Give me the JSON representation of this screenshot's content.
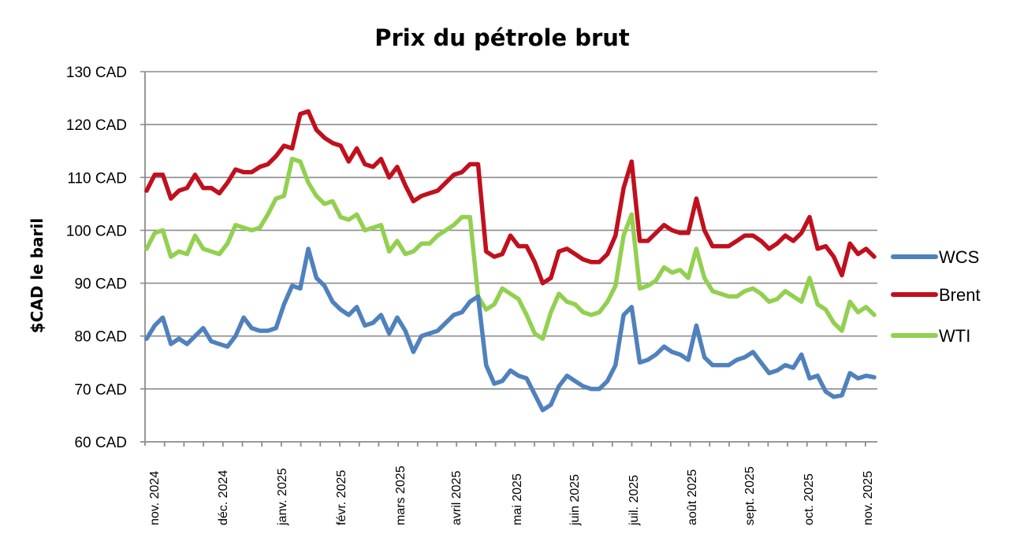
{
  "chart_data": {
    "type": "line",
    "title": "Prix du pétrole brut",
    "xlabel": "",
    "ylabel": "$CAD le baril",
    "ylim": [
      60,
      130
    ],
    "yticks": [
      "60 CAD",
      "70 CAD",
      "80 CAD",
      "90 CAD",
      "100 CAD",
      "110 CAD",
      "120 CAD",
      "130 CAD"
    ],
    "ytick_values": [
      60,
      70,
      80,
      90,
      100,
      110,
      120,
      130
    ],
    "xtick_labels": [
      "nov. 2024",
      "déc. 2024",
      "janv. 2025",
      "févr. 2025",
      "mars 2025",
      "avril 2025",
      "mai 2025",
      "juin 2025",
      "juil. 2025",
      "août 2025",
      "sept. 2025",
      "oct. 2025",
      "nov. 2025"
    ],
    "grid": true,
    "legend_position": "right",
    "x_index_count": 76,
    "series": [
      {
        "name": "WCS",
        "color": "#4f81bd",
        "values": [
          79.5,
          82,
          83.5,
          78.5,
          79.5,
          78.5,
          80,
          81.5,
          79,
          78.5,
          78,
          80,
          83.5,
          81.5,
          81,
          81,
          81.5,
          86,
          89.5,
          89,
          96.5,
          91,
          89.5,
          86.5,
          85,
          84,
          85.5,
          82,
          82.5,
          84,
          80.5,
          83.5,
          81,
          77,
          80,
          80.5,
          81,
          82.5,
          84,
          84.5,
          86.5,
          87.5,
          74.5,
          71,
          71.5,
          73.5,
          72.5,
          72,
          69,
          66,
          67,
          70.5,
          72.5,
          71.5,
          70.5,
          70,
          70,
          71.5,
          74.5,
          84,
          85.5,
          75,
          75.5,
          76.5,
          78,
          77,
          76.5,
          75.5,
          82,
          76,
          74.5,
          74.5,
          74.5,
          75.5,
          76,
          77
        ],
        "values_tail": [
          75,
          73,
          73.5,
          74.5,
          74,
          76.5,
          72,
          72.5,
          69.5,
          68.5,
          68.8,
          73,
          72,
          72.5,
          72.2
        ]
      },
      {
        "name": "Brent",
        "color": "#c0101e",
        "values": [
          107.5,
          110.5,
          110.5,
          106,
          107.5,
          108,
          110.5,
          108,
          108,
          107,
          109,
          111.5,
          111,
          111,
          112,
          112.5,
          114,
          116,
          115.5,
          122,
          122.5,
          119,
          117.5,
          116.5,
          116,
          113,
          115.5,
          112.5,
          112,
          113.5,
          110,
          112,
          108.5,
          105.5,
          106.5,
          107,
          107.5,
          109,
          110.5,
          111,
          112.5,
          112.5,
          96,
          95,
          95.5,
          99,
          97,
          97,
          94,
          90,
          91,
          96,
          96.5,
          95.5,
          94.5,
          94,
          94,
          95.5,
          99,
          108,
          113,
          98,
          98,
          99.5,
          101,
          100,
          99.5,
          99.5,
          106,
          100,
          97,
          97,
          97,
          98,
          99,
          99
        ],
        "values_tail": [
          98,
          96.5,
          97.5,
          99,
          98,
          99.5,
          102.5,
          96.5,
          97,
          95,
          91.5,
          97.5,
          95.5,
          96.5,
          95
        ]
      },
      {
        "name": "WTI",
        "color": "#92d050",
        "values": [
          96.5,
          99.5,
          100,
          95,
          96,
          95.5,
          99,
          96.5,
          96,
          95.5,
          97.5,
          101,
          100.5,
          100,
          100.5,
          103,
          106,
          106.5,
          113.5,
          113,
          109,
          106.5,
          105,
          105.5,
          102.5,
          102,
          103,
          100,
          100.5,
          101,
          96,
          98,
          95.5,
          96,
          97.5,
          97.5,
          99,
          100,
          101,
          102.5,
          102.5,
          87.5,
          85,
          86,
          89,
          88,
          87,
          84,
          80.5,
          79.5,
          84.5,
          88,
          86.5,
          86,
          84.5,
          84,
          84.5,
          86.5,
          89.5,
          99,
          103,
          89,
          89.5,
          90.5,
          93,
          92,
          92.5,
          91,
          96.5,
          91,
          88.5,
          88,
          87.5,
          87.5,
          88.5,
          89
        ],
        "values_tail": [
          88,
          86.5,
          87,
          88.5,
          87.5,
          86.5,
          91,
          86,
          85,
          82.5,
          81,
          86.5,
          84.5,
          85.5,
          84
        ]
      }
    ]
  },
  "legend": {
    "items": [
      {
        "label": "WCS",
        "color": "#4f81bd"
      },
      {
        "label": "Brent",
        "color": "#c0101e"
      },
      {
        "label": "WTI",
        "color": "#92d050"
      }
    ]
  }
}
